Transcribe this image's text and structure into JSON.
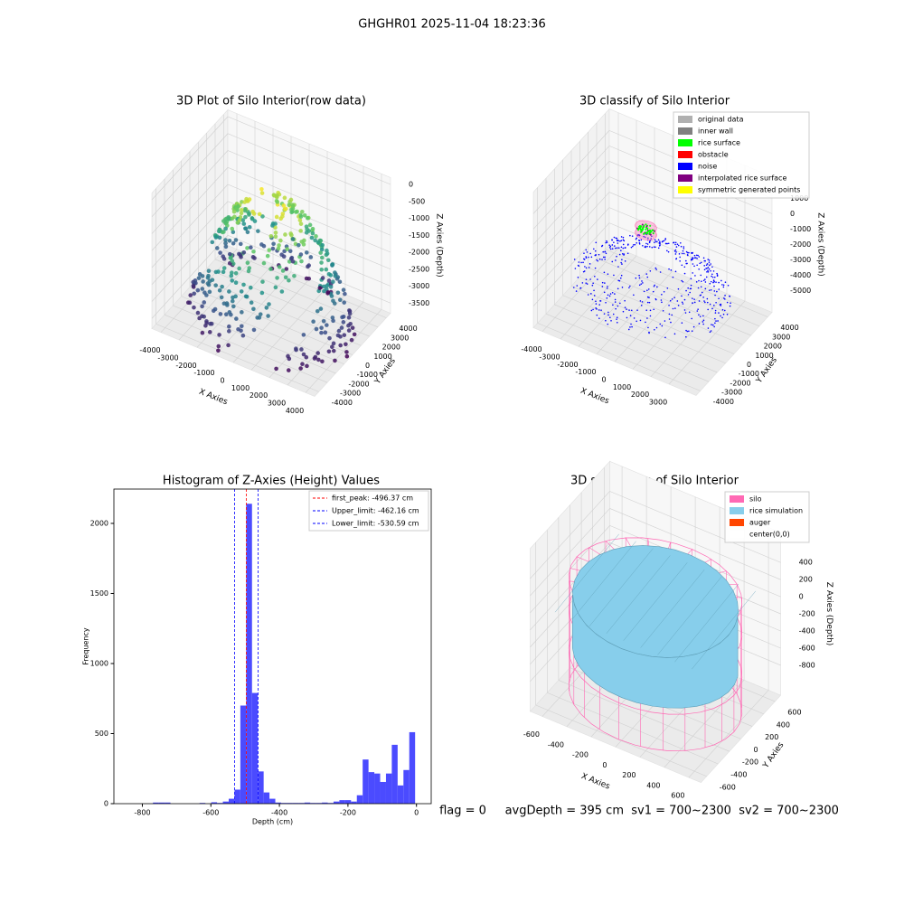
{
  "title": "GHGHR01 2025-11-04 18:23:36",
  "chart_data": [
    {
      "type": "scatter3d",
      "title": "3D Plot of Silo Interior(row data)",
      "x_label": "X Axies",
      "y_label": "Y Axies",
      "z_label": "Z Axies (Depth)",
      "xlim": [
        -4500,
        4500
      ],
      "ylim": [
        -4500,
        4500
      ],
      "zlim": [
        -3800,
        200
      ],
      "xticks": [
        -4000,
        -3000,
        -2000,
        -1000,
        0,
        1000,
        2000,
        3000,
        4000
      ],
      "yticks": [
        -4000,
        -3000,
        -2000,
        -1000,
        0,
        1000,
        2000,
        3000,
        4000
      ],
      "zticks": [
        0,
        -500,
        -1000,
        -1500,
        -2000,
        -2500,
        -3000,
        -3500
      ]
    },
    {
      "type": "scatter3d",
      "title": "3D classify of Silo Interior",
      "x_label": "X Axies",
      "y_label": "Y Axies",
      "z_label": "Z Axies (Depth)",
      "xlim": [
        -4500,
        4500
      ],
      "ylim": [
        -4500,
        4500
      ],
      "zlim": [
        -6400,
        2400
      ],
      "xticks": [
        -4000,
        -3000,
        -2000,
        -1000,
        0,
        1000,
        2000,
        3000
      ],
      "yticks": [
        -4000,
        -3000,
        -2000,
        -1000,
        0,
        1000,
        2000,
        3000,
        4000
      ],
      "zticks": [
        1000,
        0,
        -1000,
        -2000,
        -3000,
        -4000,
        -5000
      ],
      "legend": [
        {
          "name": "original data",
          "color": "#b0b0b0"
        },
        {
          "name": "inner wall",
          "color": "#808080"
        },
        {
          "name": "rice surface",
          "color": "#00ff00"
        },
        {
          "name": "obstacle",
          "color": "#ff0000"
        },
        {
          "name": "noise",
          "color": "#0000ff"
        },
        {
          "name": "interpolated rice surface",
          "color": "#800080"
        },
        {
          "name": "symmetric generated points",
          "color": "#ffff00"
        }
      ]
    },
    {
      "type": "histogram",
      "title": "Histogram of Z-Axies (Height) Values",
      "x_label": "Depth (cm)",
      "y_label": "Frequency",
      "color": "#4b4bff",
      "bins": [
        -871,
        -854,
        -837,
        -820,
        -803,
        -786,
        -769,
        -752,
        -735,
        -718,
        -701,
        -684,
        -667,
        -650,
        -633,
        -616,
        -599,
        -582,
        -565,
        -548,
        -531,
        -514,
        -497,
        -480,
        -463,
        -446,
        -429,
        -412,
        -395,
        -378,
        -361,
        -344,
        -327,
        -310,
        -293,
        -276,
        -259,
        -242,
        -225,
        -208,
        -191,
        -174,
        -157,
        -140,
        -123,
        -106,
        -89,
        -72,
        -55,
        -38,
        -21,
        -4
      ],
      "counts": [
        0,
        0,
        0,
        0,
        0,
        0,
        8,
        8,
        8,
        0,
        0,
        0,
        0,
        0,
        5,
        0,
        10,
        5,
        15,
        35,
        100,
        700,
        2140,
        790,
        230,
        80,
        35,
        8,
        5,
        5,
        5,
        5,
        8,
        5,
        5,
        8,
        5,
        15,
        25,
        25,
        15,
        60,
        315,
        225,
        215,
        155,
        215,
        420,
        130,
        240,
        510
      ],
      "xlim": [
        -883,
        43
      ],
      "ylim": [
        0,
        2245
      ],
      "xticks": [
        -800,
        -600,
        -400,
        -200,
        0
      ],
      "yticks": [
        0,
        500,
        1000,
        1500,
        2000
      ],
      "lines": [
        {
          "label": "first_peak: -496.37 cm",
          "value": -496.37,
          "color": "#ff0000"
        },
        {
          "label": "Upper_limit: -462.16 cm",
          "value": -462.16,
          "color": "#0000ff"
        },
        {
          "label": "Lower_limit: -530.59 cm",
          "value": -530.59,
          "color": "#0000ff"
        }
      ]
    },
    {
      "type": "surface3d",
      "title": "3D simulation of Silo Interior",
      "x_label": "X Axies",
      "y_label": "Y Axies",
      "z_label": "Z Axies (Depth)",
      "xlim": [
        -700,
        700
      ],
      "ylim": [
        -700,
        700
      ],
      "zlim": [
        -1150,
        750
      ],
      "xticks": [
        -600,
        -400,
        -200,
        0,
        200,
        400,
        600
      ],
      "yticks": [
        -600,
        -400,
        -200,
        0,
        200,
        400,
        600
      ],
      "zticks": [
        400,
        200,
        0,
        -200,
        -400,
        -600,
        -800
      ],
      "legend": [
        {
          "name": "silo",
          "color": "#ff69b4"
        },
        {
          "name": "rice simulation",
          "color": "#87ceeb"
        },
        {
          "name": "auger",
          "color": "#ff4500"
        },
        {
          "name": "center(0,0)",
          "color": "#ffffff"
        }
      ],
      "annotation": "flag = 0     avgDepth = 395 cm  sv1 = 700~2300  sv2 = 700~2300"
    }
  ]
}
